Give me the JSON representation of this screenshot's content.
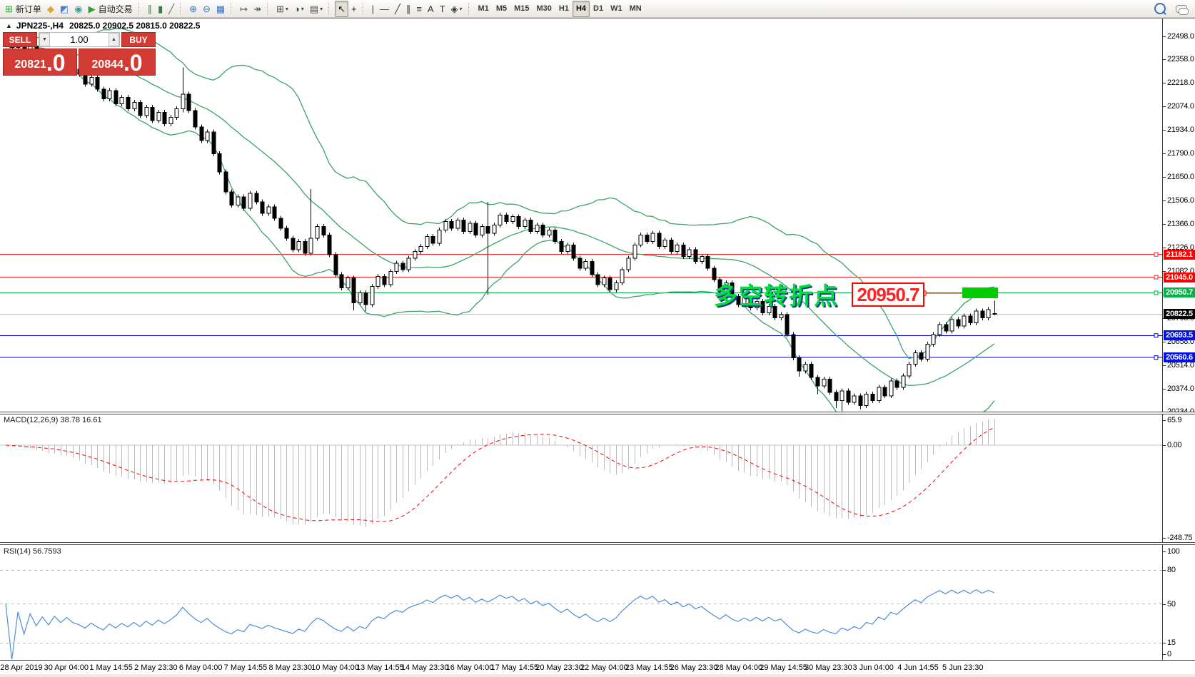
{
  "toolbar": {
    "groups": [
      [
        {
          "name": "new-order-button",
          "glyph": "⊞",
          "color": "#2e9e3a",
          "label": "新订单"
        },
        {
          "name": "news-icon",
          "glyph": "◆",
          "color": "#dca62f"
        },
        {
          "name": "community-icon",
          "glyph": "◩",
          "color": "#4a7fc9"
        },
        {
          "name": "signals-icon",
          "glyph": "◉",
          "color": "#3f9f8f"
        },
        {
          "name": "autotrading-button",
          "glyph": "▶",
          "color": "#2e9e3a",
          "label": "自动交易"
        }
      ],
      [
        {
          "name": "bar-chart-icon",
          "glyph": "∥",
          "color": "#3c7f46"
        },
        {
          "name": "candlestick-chart-icon",
          "glyph": "▮",
          "color": "#3c7f46"
        },
        {
          "name": "line-chart-icon",
          "glyph": "╱",
          "color": "#3c7f46"
        }
      ],
      [
        {
          "name": "zoom-in-icon",
          "glyph": "⊕",
          "color": "#3c6fb5"
        },
        {
          "name": "zoom-out-icon",
          "glyph": "⊖",
          "color": "#3c6fb5"
        },
        {
          "name": "tile-windows-icon",
          "glyph": "▦",
          "color": "#3c6fb5"
        }
      ],
      [
        {
          "name": "scroll-to-end-icon",
          "glyph": "↦",
          "color": "#4a4a4a"
        },
        {
          "name": "auto-scroll-icon",
          "glyph": "↠",
          "color": "#4a4a4a"
        }
      ],
      [
        {
          "name": "new-chart-icon",
          "glyph": "⊞",
          "color": "#4a4a4a",
          "caret": true
        },
        {
          "name": "period-icon",
          "glyph": "◑",
          "color": "#4a4a4a",
          "caret": true
        },
        {
          "name": "template-icon",
          "glyph": "▤",
          "color": "#4a4a4a",
          "caret": true
        }
      ],
      [
        {
          "name": "cursor-icon",
          "glyph": "↖",
          "color": "#1a1a1a",
          "active": true
        },
        {
          "name": "crosshair-icon",
          "glyph": "+",
          "color": "#1a1a1a"
        }
      ],
      [
        {
          "name": "vertical-line-icon",
          "glyph": "|",
          "color": "#333333"
        },
        {
          "name": "horizontal-line-icon",
          "glyph": "—",
          "color": "#333333"
        },
        {
          "name": "trendline-icon",
          "glyph": "╱",
          "color": "#333333"
        },
        {
          "name": "channel-icon",
          "glyph": "∥",
          "color": "#333333"
        },
        {
          "name": "fibonacci-icon",
          "glyph": "≡",
          "color": "#333333"
        },
        {
          "name": "text-icon",
          "glyph": "A",
          "color": "#333333"
        },
        {
          "name": "label-icon",
          "glyph": "T",
          "color": "#333333"
        },
        {
          "name": "shapes-icon",
          "glyph": "◈",
          "color": "#333333",
          "caret": true
        }
      ]
    ],
    "timeframes": [
      "M1",
      "M5",
      "M15",
      "M30",
      "H1",
      "H4",
      "D1",
      "W1",
      "MN"
    ],
    "active_timeframe": "H4"
  },
  "chart": {
    "collapse_glyph": "▲",
    "symbol_period": "JPN225-,H4",
    "ohlc": "20825.0 20902.5 20815.0 20822.5"
  },
  "trade_panel": {
    "sell_label": "SELL",
    "buy_label": "BUY",
    "volume": "1.00",
    "spin_down": "▼",
    "spin_up": "▲",
    "sell_price": "20821",
    "sell_price_frac": ".0",
    "buy_price": "20844",
    "buy_price_frac": ".0"
  },
  "annotations": {
    "turning_point": "多空转折点",
    "price_box": "20950.7"
  },
  "macd_panel": {
    "label": "MACD(12,26,9) 38.78 16.61",
    "axis": [
      {
        "v": 65.9,
        "label": "65.9"
      },
      {
        "v": 0,
        "label": "0.00"
      },
      {
        "v": -248.75,
        "label": "-248.75"
      }
    ]
  },
  "rsi_panel": {
    "label": "RSI(14) 56.7593",
    "axis": [
      {
        "v": 100,
        "label": "100"
      },
      {
        "v": 80,
        "label": "80"
      },
      {
        "v": 50,
        "label": "50"
      },
      {
        "v": 15,
        "label": "15"
      },
      {
        "v": 0,
        "label": "0"
      }
    ],
    "levels": [
      80,
      50,
      15
    ]
  },
  "price_axis_ticks": [
    22498.0,
    22358.0,
    22218.0,
    22074.0,
    21934.0,
    21790.0,
    21650.0,
    21506.0,
    21366.0,
    21226.0,
    21082.0,
    20942.0,
    20798.0,
    20658.0,
    20514.0,
    20374.0,
    20234.0
  ],
  "levels": [
    {
      "price": 21182.1,
      "label": "21182.1",
      "line_color": "#ff2020",
      "badge_color": "#ff0000"
    },
    {
      "price": 21045.0,
      "label": "21045.0",
      "line_color": "#ff2020",
      "badge_color": "#ff0000"
    },
    {
      "price": 20950.7,
      "label": "20950.7",
      "line_color": "#00a53c",
      "badge_color": "#00b44a"
    },
    {
      "price": 20822.5,
      "label": "20822.5",
      "line_color": "#c0c0c0",
      "badge_color": "#000000",
      "current": true
    },
    {
      "price": 20693.5,
      "label": "20693.5",
      "line_color": "#0000e8",
      "badge_color": "#0010e8"
    },
    {
      "price": 20560.6,
      "label": "20560.6",
      "line_color": "#0000e8",
      "badge_color": "#0010e8"
    }
  ],
  "time_axis": {
    "labels": [
      "28 Apr 2019",
      "30 Apr 04:00",
      "1 May 14:55",
      "2 May 23:30",
      "6 May 04:00",
      "7 May 14:55",
      "8 May 23:30",
      "10 May 04:00",
      "13 May 14:55",
      "14 May 23:30",
      "16 May 04:00",
      "17 May 14:55",
      "20 May 23:30",
      "22 May 04:00",
      "23 May 14:55",
      "26 May 23:30",
      "28 May 04:00",
      "29 May 14:55",
      "30 May 23:30",
      "3 Jun 04:00",
      "4 Jun 14:55",
      "5 Jun 23:30"
    ]
  },
  "chart_data": {
    "type": "candlestick",
    "symbol": "JPN225-",
    "timeframe": "H4",
    "last_ohlc": {
      "open": 20825.0,
      "high": 20902.5,
      "low": 20815.0,
      "close": 20822.5
    },
    "y_axis_range": [
      20230,
      22605
    ],
    "bollinger": {
      "period": 20,
      "deviation": 2,
      "color": "#3aa369"
    },
    "macd": {
      "fast": 12,
      "slow": 26,
      "signal": 9,
      "value": 38.78,
      "signal_value": 16.61,
      "range": [
        -260,
        80
      ],
      "hist_color": "#b9b9b9",
      "signal_color": "#ff0000"
    },
    "rsi": {
      "period": 14,
      "value": 56.7593,
      "color": "#4e8ed9"
    },
    "candles": [
      [
        22500,
        22515,
        22455,
        22470
      ],
      [
        22470,
        22485,
        22415,
        22430
      ],
      [
        22430,
        22475,
        22415,
        22460
      ],
      [
        22460,
        22475,
        22385,
        22400
      ],
      [
        22400,
        22455,
        22385,
        22440
      ],
      [
        22440,
        22455,
        22365,
        22380
      ],
      [
        22380,
        22425,
        22365,
        22410
      ],
      [
        22410,
        22425,
        22335,
        22350
      ],
      [
        22350,
        22405,
        22335,
        22390
      ],
      [
        22390,
        22405,
        22315,
        22330
      ],
      [
        22330,
        22375,
        22315,
        22360
      ],
      [
        22360,
        22375,
        22285,
        22300
      ],
      [
        22300,
        22315,
        22255,
        22270
      ],
      [
        22270,
        22285,
        22195,
        22210
      ],
      [
        22210,
        22265,
        22195,
        22250
      ],
      [
        22250,
        22265,
        22165,
        22180
      ],
      [
        22180,
        22195,
        22105,
        22120
      ],
      [
        22120,
        22185,
        22105,
        22170
      ],
      [
        22170,
        22185,
        22075,
        22090
      ],
      [
        22090,
        22145,
        22075,
        22130
      ],
      [
        22130,
        22145,
        22045,
        22060
      ],
      [
        22060,
        22115,
        22045,
        22100
      ],
      [
        22100,
        22115,
        22005,
        22020
      ],
      [
        22020,
        22085,
        22005,
        22070
      ],
      [
        22070,
        22085,
        21975,
        21990
      ],
      [
        21990,
        22055,
        21975,
        22040
      ],
      [
        22040,
        22055,
        21955,
        21970
      ],
      [
        21970,
        22025,
        21955,
        22010
      ],
      [
        22010,
        22075,
        21995,
        22060
      ],
      [
        22060,
        22310,
        22040,
        22150
      ],
      [
        22150,
        22165,
        22035,
        22050
      ],
      [
        22050,
        22065,
        21935,
        21950
      ],
      [
        21950,
        21965,
        21855,
        21870
      ],
      [
        21870,
        21935,
        21855,
        21920
      ],
      [
        21920,
        21935,
        21775,
        21790
      ],
      [
        21790,
        21805,
        21665,
        21680
      ],
      [
        21680,
        21695,
        21545,
        21560
      ],
      [
        21560,
        21575,
        21465,
        21480
      ],
      [
        21480,
        21545,
        21465,
        21530
      ],
      [
        21530,
        21545,
        21445,
        21460
      ],
      [
        21460,
        21565,
        21445,
        21550
      ],
      [
        21550,
        21565,
        21485,
        21500
      ],
      [
        21500,
        21515,
        21415,
        21430
      ],
      [
        21430,
        21485,
        21415,
        21470
      ],
      [
        21470,
        21485,
        21385,
        21400
      ],
      [
        21400,
        21415,
        21325,
        21340
      ],
      [
        21340,
        21355,
        21265,
        21280
      ],
      [
        21280,
        21295,
        21195,
        21210
      ],
      [
        21210,
        21275,
        21195,
        21260
      ],
      [
        21260,
        21275,
        21175,
        21190
      ],
      [
        21190,
        21577,
        21175,
        21280
      ],
      [
        21280,
        21365,
        21265,
        21350
      ],
      [
        21350,
        21365,
        21285,
        21300
      ],
      [
        21300,
        21315,
        21165,
        21180
      ],
      [
        21180,
        21195,
        21045,
        21060
      ],
      [
        21060,
        21075,
        20965,
        20980
      ],
      [
        20980,
        21055,
        20965,
        21040
      ],
      [
        21040,
        21055,
        20845,
        20890
      ],
      [
        20890,
        20965,
        20875,
        20950
      ],
      [
        20950,
        20965,
        20838,
        20880
      ],
      [
        20880,
        21005,
        20865,
        20990
      ],
      [
        20990,
        21065,
        20975,
        21050
      ],
      [
        21050,
        21065,
        20985,
        21000
      ],
      [
        21000,
        21095,
        20985,
        21080
      ],
      [
        21080,
        21145,
        21065,
        21130
      ],
      [
        21130,
        21145,
        21075,
        21090
      ],
      [
        21090,
        21175,
        21075,
        21160
      ],
      [
        21160,
        21215,
        21145,
        21200
      ],
      [
        21200,
        21245,
        21185,
        21230
      ],
      [
        21230,
        21305,
        21215,
        21290
      ],
      [
        21290,
        21305,
        21235,
        21250
      ],
      [
        21250,
        21345,
        21235,
        21330
      ],
      [
        21330,
        21395,
        21315,
        21380
      ],
      [
        21380,
        21395,
        21325,
        21340
      ],
      [
        21340,
        21405,
        21325,
        21390
      ],
      [
        21390,
        21405,
        21305,
        21320
      ],
      [
        21320,
        21385,
        21305,
        21370
      ],
      [
        21370,
        21385,
        21285,
        21300
      ],
      [
        21300,
        21365,
        21285,
        21350
      ],
      [
        21350,
        21500,
        20940,
        21310
      ],
      [
        21310,
        21375,
        21295,
        21360
      ],
      [
        21360,
        21435,
        21345,
        21420
      ],
      [
        21420,
        21435,
        21365,
        21380
      ],
      [
        21380,
        21425,
        21365,
        21410
      ],
      [
        21410,
        21425,
        21335,
        21350
      ],
      [
        21350,
        21405,
        21335,
        21390
      ],
      [
        21390,
        21405,
        21305,
        21320
      ],
      [
        21320,
        21375,
        21305,
        21360
      ],
      [
        21360,
        21375,
        21285,
        21300
      ],
      [
        21300,
        21345,
        21285,
        21330
      ],
      [
        21330,
        21345,
        21245,
        21260
      ],
      [
        21260,
        21275,
        21185,
        21200
      ],
      [
        21200,
        21255,
        21185,
        21240
      ],
      [
        21240,
        21255,
        21145,
        21160
      ],
      [
        21160,
        21175,
        21085,
        21100
      ],
      [
        21100,
        21155,
        21085,
        21140
      ],
      [
        21140,
        21155,
        21045,
        21060
      ],
      [
        21060,
        21075,
        20985,
        21000
      ],
      [
        21000,
        21055,
        20985,
        21040
      ],
      [
        21040,
        21055,
        20955,
        20970
      ],
      [
        20970,
        21025,
        20955,
        21010
      ],
      [
        21010,
        21105,
        20995,
        21090
      ],
      [
        21090,
        21175,
        21075,
        21160
      ],
      [
        21160,
        21255,
        21145,
        21240
      ],
      [
        21240,
        21315,
        21225,
        21300
      ],
      [
        21300,
        21315,
        21245,
        21260
      ],
      [
        21260,
        21325,
        21245,
        21310
      ],
      [
        21310,
        21325,
        21215,
        21230
      ],
      [
        21230,
        21285,
        21215,
        21270
      ],
      [
        21270,
        21285,
        21185,
        21200
      ],
      [
        21200,
        21255,
        21185,
        21240
      ],
      [
        21240,
        21255,
        21155,
        21170
      ],
      [
        21170,
        21225,
        21155,
        21210
      ],
      [
        21210,
        21225,
        21125,
        21140
      ],
      [
        21140,
        21185,
        21125,
        21170
      ],
      [
        21170,
        21185,
        21085,
        21100
      ],
      [
        21100,
        21115,
        21015,
        21030
      ],
      [
        21030,
        21045,
        20945,
        20960
      ],
      [
        20960,
        21025,
        20945,
        21010
      ],
      [
        21010,
        21025,
        20915,
        20930
      ],
      [
        20930,
        20945,
        20865,
        20880
      ],
      [
        20880,
        20935,
        20865,
        20920
      ],
      [
        20920,
        20935,
        20845,
        20860
      ],
      [
        20860,
        20915,
        20845,
        20900
      ],
      [
        20900,
        20915,
        20815,
        20830
      ],
      [
        20830,
        20885,
        20815,
        20870
      ],
      [
        20870,
        20885,
        20785,
        20800
      ],
      [
        20800,
        20835,
        20785,
        20820
      ],
      [
        20820,
        20835,
        20685,
        20700
      ],
      [
        20700,
        20715,
        20545,
        20560
      ],
      [
        20560,
        20575,
        20445,
        20480
      ],
      [
        20480,
        20535,
        20465,
        20520
      ],
      [
        20520,
        20535,
        20425,
        20440
      ],
      [
        20440,
        20455,
        20340,
        20390
      ],
      [
        20390,
        20445,
        20375,
        20430
      ],
      [
        20430,
        20445,
        20335,
        20350
      ],
      [
        20350,
        20365,
        20255,
        20300
      ],
      [
        20300,
        20375,
        20237,
        20360
      ],
      [
        20360,
        20375,
        20275,
        20290
      ],
      [
        20290,
        20345,
        20275,
        20330
      ],
      [
        20330,
        20345,
        20250,
        20270
      ],
      [
        20270,
        20355,
        20255,
        20340
      ],
      [
        20340,
        20355,
        20285,
        20300
      ],
      [
        20300,
        20395,
        20285,
        20380
      ],
      [
        20380,
        20395,
        20315,
        20330
      ],
      [
        20330,
        20435,
        20315,
        20420
      ],
      [
        20420,
        20435,
        20365,
        20380
      ],
      [
        20380,
        20465,
        20365,
        20450
      ],
      [
        20450,
        20535,
        20435,
        20520
      ],
      [
        20520,
        20605,
        20505,
        20590
      ],
      [
        20590,
        20605,
        20535,
        20550
      ],
      [
        20550,
        20655,
        20535,
        20640
      ],
      [
        20640,
        20715,
        20625,
        20700
      ],
      [
        20700,
        20775,
        20685,
        20760
      ],
      [
        20760,
        20775,
        20705,
        20720
      ],
      [
        20720,
        20805,
        20705,
        20790
      ],
      [
        20790,
        20805,
        20735,
        20750
      ],
      [
        20750,
        20825,
        20735,
        20810
      ],
      [
        20810,
        20825,
        20755,
        20770
      ],
      [
        20770,
        20855,
        20755,
        20840
      ],
      [
        20840,
        20855,
        20785,
        20800
      ],
      [
        20800,
        20865,
        20785,
        20850
      ],
      [
        20825,
        20902.5,
        20815,
        20822.5
      ]
    ]
  }
}
